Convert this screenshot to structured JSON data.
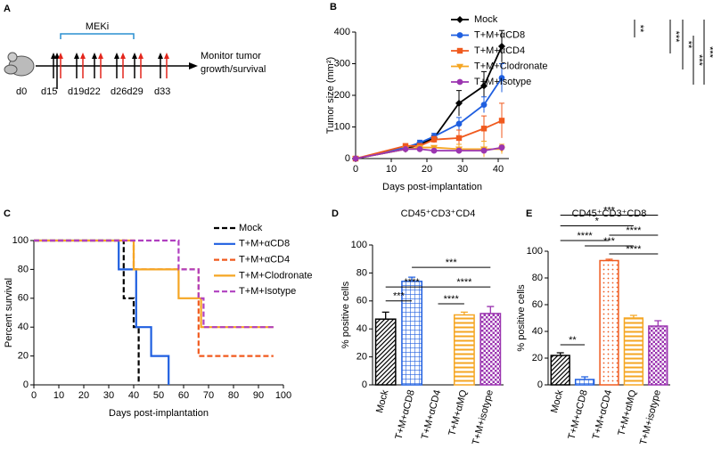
{
  "schematic": {
    "panel": "A",
    "drug": "MEKi",
    "endpoint": [
      "Monitor tumor",
      "growth/survival"
    ],
    "days": [
      "d0",
      "d15",
      "d19d22",
      "d26d29",
      "d33"
    ]
  },
  "chart_data": [
    {
      "panel": "B",
      "type": "line",
      "xlabel": "Days post-implantation",
      "ylabel": "Tumor size (mm²)",
      "x": [
        0,
        14,
        18,
        22,
        29,
        36,
        41
      ],
      "xlim": [
        0,
        43
      ],
      "xticks": [
        0,
        10,
        20,
        30,
        40
      ],
      "ylim": [
        0,
        400
      ],
      "yticks": [
        0,
        100,
        200,
        300,
        400
      ],
      "series": [
        {
          "name": "Mock",
          "color": "#000000",
          "marker": "diamond",
          "values": [
            0,
            30,
            45,
            65,
            175,
            230,
            355
          ],
          "errors": [
            0,
            5,
            8,
            10,
            40,
            45,
            50
          ]
        },
        {
          "name": "T+M+αCD8",
          "color": "#1f5fe0",
          "marker": "circle",
          "values": [
            0,
            35,
            50,
            70,
            110,
            170,
            255
          ],
          "errors": [
            0,
            5,
            8,
            10,
            20,
            25,
            45
          ]
        },
        {
          "name": "T+M+αCD4",
          "color": "#f05a1e",
          "marker": "square",
          "values": [
            0,
            40,
            40,
            60,
            65,
            95,
            120
          ],
          "errors": [
            0,
            5,
            8,
            10,
            25,
            40,
            55
          ]
        },
        {
          "name": "T+M+Clodronate",
          "color": "#f5a623",
          "marker": "triangle",
          "values": [
            0,
            30,
            35,
            35,
            30,
            30,
            30
          ],
          "errors": [
            0,
            5,
            5,
            5,
            15,
            25,
            15
          ]
        },
        {
          "name": "T+M+Isotype",
          "color": "#9b35b0",
          "marker": "circle",
          "values": [
            0,
            30,
            30,
            25,
            25,
            25,
            35
          ],
          "errors": [
            0,
            3,
            3,
            3,
            3,
            5,
            5
          ]
        }
      ],
      "annotations": [
        "**",
        "***",
        "**",
        "***",
        "***"
      ]
    },
    {
      "panel": "C",
      "type": "step",
      "xlabel": "Days post-implantation",
      "ylabel": "Percent survival",
      "xlim": [
        0,
        100
      ],
      "xticks": [
        0,
        10,
        20,
        30,
        40,
        50,
        60,
        70,
        80,
        90,
        100
      ],
      "ylim": [
        0,
        100
      ],
      "yticks": [
        0,
        20,
        40,
        60,
        80,
        100
      ],
      "series": [
        {
          "name": "Mock",
          "color": "#000000",
          "dashed": true,
          "x": [
            0,
            36,
            40,
            42
          ],
          "values": [
            100,
            60,
            40,
            0
          ]
        },
        {
          "name": "T+M+αCD8",
          "color": "#1f5fe0",
          "dashed": false,
          "x": [
            0,
            34,
            41,
            47,
            54
          ],
          "values": [
            100,
            80,
            40,
            20,
            0
          ]
        },
        {
          "name": "T+M+αCD4",
          "color": "#f05a1e",
          "dashed": true,
          "x": [
            0,
            40,
            66,
            96
          ],
          "values": [
            100,
            80,
            20,
            20
          ]
        },
        {
          "name": "T+M+Clodronate",
          "color": "#f5a623",
          "dashed": false,
          "x": [
            0,
            40,
            58,
            67,
            96
          ],
          "values": [
            100,
            80,
            60,
            40,
            40
          ]
        },
        {
          "name": "T+M+Isotype",
          "color": "#b040c0",
          "dashed": true,
          "x": [
            0,
            58,
            66,
            68,
            96
          ],
          "values": [
            100,
            80,
            60,
            40,
            40
          ]
        }
      ]
    },
    {
      "panel": "D",
      "type": "bar",
      "title": "CD45⁺CD3⁺CD4",
      "ylabel": "% positive cells",
      "categories": [
        "Mock",
        "T+M+αCD8",
        "T+M+αCD4",
        "T+M+αMQ",
        "T+M+isotype"
      ],
      "values": [
        47,
        74,
        0,
        50,
        51
      ],
      "errors": [
        5,
        3,
        0,
        2,
        5
      ],
      "colors": [
        "#000000",
        "#1f5fe0",
        "#f05a1e",
        "#f5a623",
        "#9b35b0"
      ],
      "ylim": [
        0,
        100
      ],
      "yticks": [
        0,
        20,
        40,
        60,
        80,
        100
      ],
      "annotations": [
        "****",
        "****",
        "***",
        "***",
        "****"
      ]
    },
    {
      "panel": "E",
      "type": "bar",
      "title": "CD45⁺CD3⁺CD8",
      "ylabel": "% positive cells",
      "categories": [
        "Mock",
        "T+M+αCD8",
        "T+M+αCD4",
        "T+M+αMQ",
        "T+M+isotype"
      ],
      "values": [
        22,
        4,
        93,
        50,
        44
      ],
      "errors": [
        2,
        2,
        1,
        2,
        4
      ],
      "colors": [
        "#000000",
        "#1f5fe0",
        "#f05a1e",
        "#f5a623",
        "#9b35b0"
      ],
      "ylim": [
        0,
        100
      ],
      "yticks": [
        0,
        20,
        40,
        60,
        80,
        100
      ],
      "annotations": [
        "***",
        "*",
        "****",
        "****",
        "***",
        "****",
        "**"
      ]
    }
  ]
}
